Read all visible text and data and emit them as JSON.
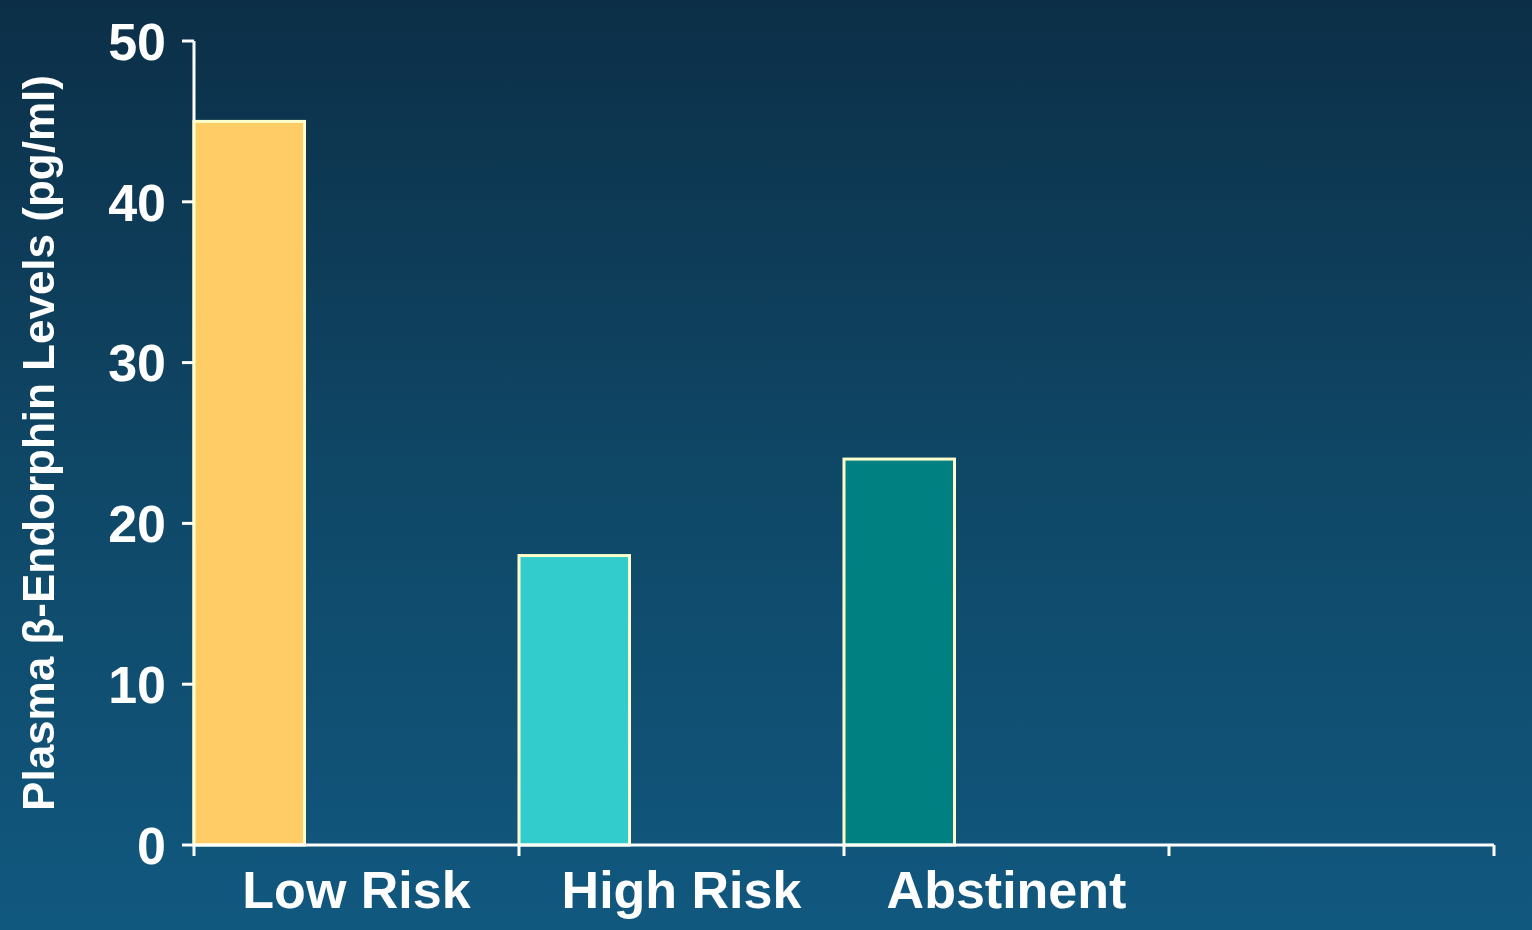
{
  "chart_data": {
    "type": "bar",
    "ylabel": "Plasma β-Endorphin Levels (pg/ml)",
    "categories": [
      "Low Risk",
      "High Risk",
      "Abstinent",
      null
    ],
    "values": [
      45,
      18,
      24,
      null
    ],
    "colors": [
      "#ffcc66",
      "#33cccc",
      "#008080",
      null
    ],
    "ylim": [
      0,
      50
    ],
    "yticks": [
      0,
      10,
      20,
      30,
      40,
      50
    ]
  }
}
